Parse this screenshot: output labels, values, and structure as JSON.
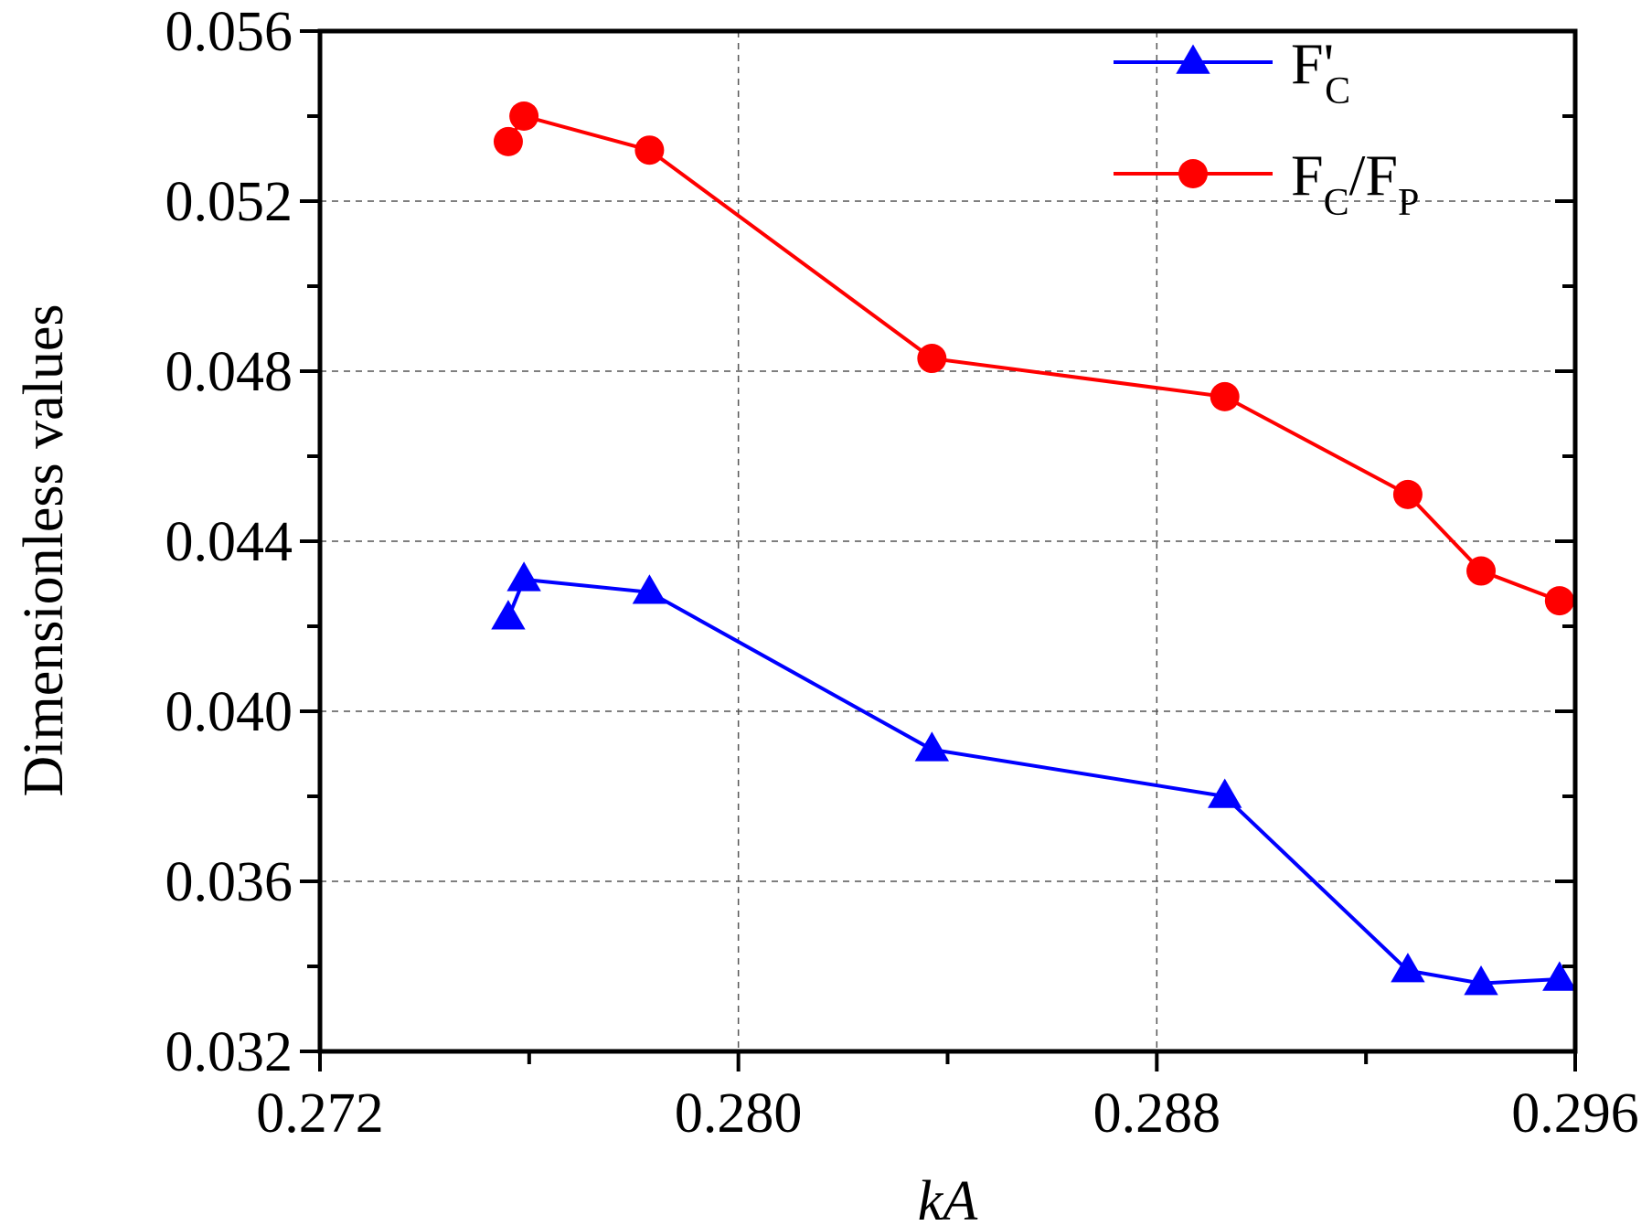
{
  "chart_data": {
    "type": "line",
    "title": "",
    "xlabel": "kA",
    "ylabel": "Dimensionless values",
    "xlim": [
      0.272,
      0.296
    ],
    "ylim": [
      0.032,
      0.056
    ],
    "xticks": [
      0.272,
      0.28,
      0.288,
      0.296
    ],
    "xtick_labels": [
      "0.272",
      "0.280",
      "0.288",
      "0.296"
    ],
    "yticks": [
      0.032,
      0.036,
      0.04,
      0.044,
      0.048,
      0.052,
      0.056
    ],
    "ytick_labels": [
      "0.032",
      "0.036",
      "0.040",
      "0.044",
      "0.048",
      "0.052",
      "0.056"
    ],
    "grid": true,
    "legend_position": "top-right",
    "series": [
      {
        "name": "F'C",
        "legend_main": "F'",
        "legend_sub": "C",
        "color": "#0000ff",
        "marker": "triangle",
        "points": [
          {
            "x": 0.2756,
            "y": 0.0422
          },
          {
            "x": 0.2759,
            "y": 0.0431
          },
          {
            "x": 0.2783,
            "y": 0.0428
          },
          {
            "x": 0.2837,
            "y": 0.0391
          },
          {
            "x": 0.2893,
            "y": 0.038
          },
          {
            "x": 0.2928,
            "y": 0.0339
          },
          {
            "x": 0.2942,
            "y": 0.0336
          },
          {
            "x": 0.2957,
            "y": 0.0337
          }
        ]
      },
      {
        "name": "FC/FP",
        "legend_parts": [
          {
            "text": "F",
            "sub": "C"
          },
          {
            "text": "/F",
            "sub": "P"
          }
        ],
        "color": "#ff0000",
        "marker": "circle",
        "points": [
          {
            "x": 0.2756,
            "y": 0.0534
          },
          {
            "x": 0.2759,
            "y": 0.054
          },
          {
            "x": 0.2783,
            "y": 0.0532
          },
          {
            "x": 0.2837,
            "y": 0.0483
          },
          {
            "x": 0.2893,
            "y": 0.0474
          },
          {
            "x": 0.2928,
            "y": 0.0451
          },
          {
            "x": 0.2942,
            "y": 0.0433
          },
          {
            "x": 0.2957,
            "y": 0.0426
          }
        ]
      }
    ]
  }
}
